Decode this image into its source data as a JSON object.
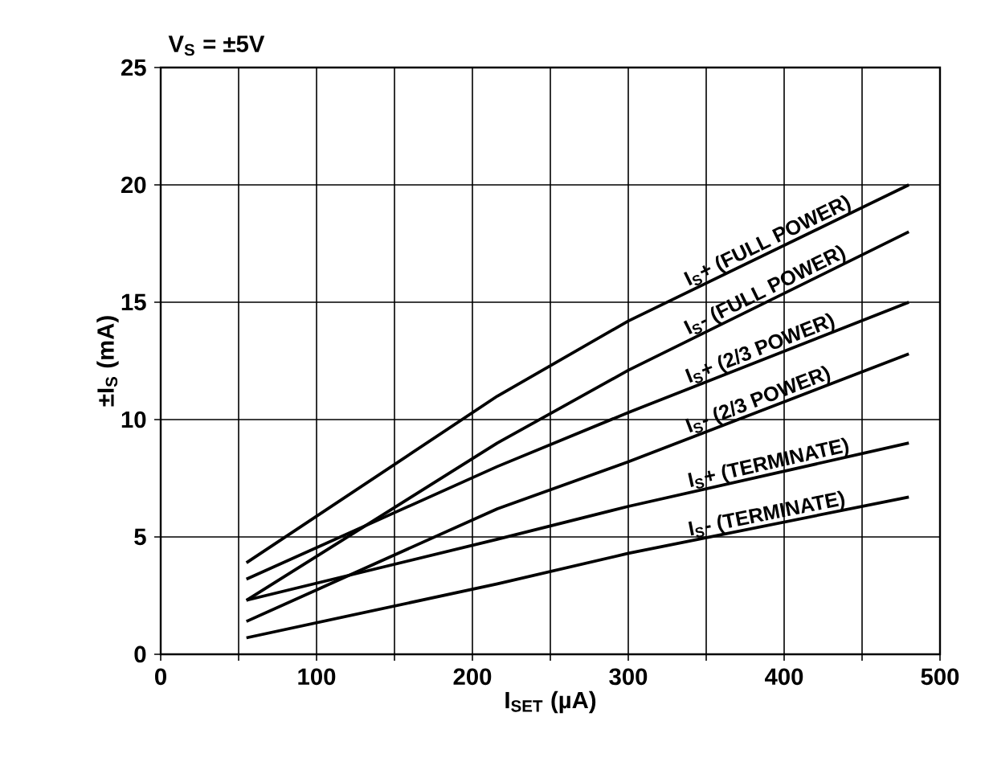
{
  "chart_data": {
    "type": "line",
    "title": "V$_{S}$ = ±5V",
    "xlabel": "I$_{SET}$ (µA)",
    "ylabel": "±I$_{S}$ (mA)",
    "xlim": [
      0,
      500
    ],
    "ylim": [
      0,
      25
    ],
    "xticks": [
      0,
      {
        "value": 50,
        "label": null
      },
      100,
      {
        "value": 150,
        "label": null
      },
      200,
      {
        "value": 250,
        "label": null
      },
      300,
      {
        "value": 350,
        "label": null
      },
      400,
      {
        "value": 450,
        "label": null
      },
      500
    ],
    "yticks": [
      0,
      5,
      10,
      15,
      20,
      25
    ],
    "grid": true,
    "legend": false,
    "marker": "none",
    "line_style": "solid",
    "series": [
      {
        "name": "I$_{S}$+ (FULL POWER)",
        "color": "#000000",
        "x": [
          55,
          216,
          300,
          480
        ],
        "values": [
          3.9,
          11.0,
          14.2,
          20.0
        ]
      },
      {
        "name": "I$_{S}$- (FULL POWER)",
        "color": "#000000",
        "x": [
          55,
          216,
          300,
          480
        ],
        "values": [
          2.3,
          9.0,
          12.1,
          18.0
        ]
      },
      {
        "name": "I$_{S}$+ (2/3 POWER)",
        "color": "#000000",
        "x": [
          55,
          216,
          300,
          480
        ],
        "values": [
          3.2,
          8.0,
          10.3,
          15.0
        ]
      },
      {
        "name": "I$_{S}$- (2/3 POWER)",
        "color": "#000000",
        "x": [
          55,
          216,
          300,
          480
        ],
        "values": [
          1.4,
          6.2,
          8.2,
          12.8
        ]
      },
      {
        "name": "I$_{S}$+ (TERMINATE)",
        "color": "#000000",
        "x": [
          55,
          216,
          300,
          480
        ],
        "values": [
          2.3,
          4.9,
          6.3,
          9.0
        ]
      },
      {
        "name": "I$_{S}$- (TERMINATE)",
        "color": "#000000",
        "x": [
          55,
          216,
          300,
          480
        ],
        "values": [
          0.7,
          3.0,
          4.3,
          6.7
        ]
      }
    ]
  }
}
